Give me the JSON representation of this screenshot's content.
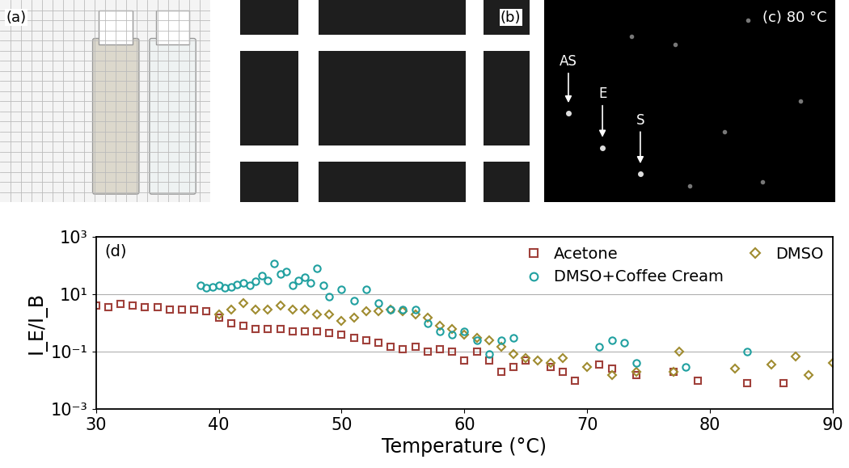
{
  "images": [
    {
      "label": "(a)"
    },
    {
      "label": "(b)"
    },
    {
      "label": "(c) 80 °C",
      "annotations": [
        "AS",
        "E",
        "S"
      ]
    }
  ],
  "chart_data": {
    "type": "scatter",
    "title": "(d)",
    "x_label": "Temperature (°C)",
    "y_label": "I_E/I_B",
    "log": "y",
    "grid": true,
    "legend": "upper right",
    "xlim": [
      30,
      90
    ],
    "xticks": [
      30,
      40,
      50,
      60,
      70,
      80,
      90
    ],
    "ylim": [
      0.001,
      1000
    ],
    "yticks": [
      {
        "value": 0.001,
        "label": "10⁻³"
      },
      {
        "value": 0.1,
        "label": "10⁻¹"
      },
      {
        "value": 10,
        "label": "10¹"
      },
      {
        "value": 1000,
        "label": "10³"
      }
    ],
    "series": [
      {
        "name": "Acetone",
        "color": "#a0403a",
        "marker": "square",
        "x": [
          30,
          31,
          32,
          33,
          34,
          35,
          36,
          37,
          38,
          39,
          40,
          41,
          42,
          43,
          44,
          45,
          46,
          47,
          48,
          49,
          50,
          51,
          52,
          53,
          54,
          55,
          56,
          57,
          58,
          59,
          60,
          61,
          62,
          63,
          64,
          65,
          67,
          68,
          69,
          71,
          72,
          74,
          77,
          79,
          83,
          86
        ],
        "values": [
          4,
          3.5,
          4.5,
          4,
          3.5,
          3.5,
          3,
          3,
          3,
          2.5,
          1.5,
          1,
          0.8,
          0.6,
          0.6,
          0.6,
          0.5,
          0.5,
          0.5,
          0.45,
          0.4,
          0.3,
          0.25,
          0.2,
          0.15,
          0.12,
          0.15,
          0.1,
          0.12,
          0.1,
          0.05,
          0.1,
          0.05,
          0.02,
          0.03,
          0.05,
          0.03,
          0.02,
          0.01,
          0.035,
          0.025,
          0.015,
          0.02,
          0.01,
          0.008,
          0.008
        ]
      },
      {
        "name": "DMSO",
        "color": "#a08c30",
        "marker": "diamond",
        "x": [
          40,
          41,
          42,
          43,
          44,
          45,
          46,
          47,
          48,
          49,
          50,
          51,
          52,
          53,
          54,
          55,
          56,
          57,
          58,
          59,
          60,
          61,
          62,
          63,
          64,
          65,
          66,
          67,
          68,
          70,
          72,
          74,
          77,
          77.5,
          82,
          85,
          87,
          88,
          90
        ],
        "values": [
          2,
          3,
          5,
          3,
          3,
          4,
          3,
          3,
          2,
          2,
          1.2,
          1.5,
          2.5,
          2.5,
          3,
          2.5,
          2,
          1.5,
          0.8,
          0.6,
          0.4,
          0.3,
          0.25,
          0.15,
          0.08,
          0.06,
          0.05,
          0.04,
          0.06,
          0.03,
          0.015,
          0.02,
          0.02,
          0.1,
          0.025,
          0.035,
          0.07,
          0.015,
          0.04
        ]
      },
      {
        "name": "DMSO+Coffee Cream",
        "color": "#20a0a0",
        "marker": "circle",
        "x": [
          38.5,
          39,
          39.5,
          40,
          40.5,
          41,
          41.5,
          42,
          42.5,
          43,
          43.5,
          44,
          44.5,
          45,
          45.5,
          46,
          46.5,
          47,
          47.5,
          48,
          48.5,
          49,
          50,
          51,
          52,
          53,
          54,
          55,
          56,
          57,
          58,
          59,
          60,
          61,
          62,
          63,
          64,
          71,
          72,
          73,
          74,
          78,
          83
        ],
        "values": [
          20,
          17,
          18,
          20,
          17,
          18,
          22,
          25,
          20,
          28,
          45,
          30,
          120,
          50,
          60,
          20,
          30,
          40,
          25,
          80,
          20,
          8,
          15,
          6,
          15,
          5,
          3,
          3,
          3,
          1,
          0.5,
          0.4,
          0.5,
          0.25,
          0.08,
          0.25,
          0.3,
          0.15,
          0.25,
          0.2,
          0.04,
          0.03,
          0.1
        ]
      }
    ]
  }
}
